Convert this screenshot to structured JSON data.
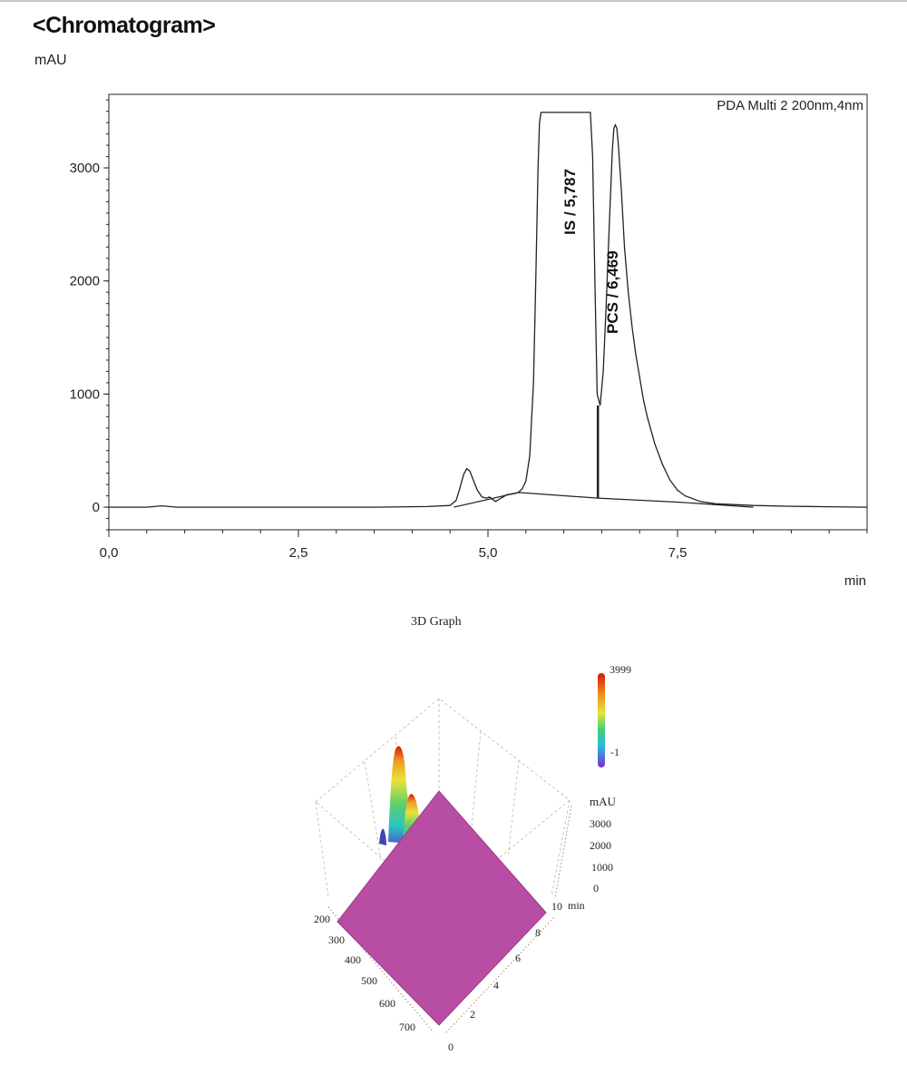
{
  "chart_data": [
    {
      "type": "line",
      "title": "<Chromatogram>",
      "ylabel": "mAU",
      "xlabel": "min",
      "detector_label": "PDA Multi 2 200nm,4nm",
      "xlim": [
        0,
        10
      ],
      "ylim": [
        -200,
        3650
      ],
      "x_ticks": [
        0,
        2.5,
        5,
        7.5
      ],
      "x_tick_labels": [
        "0,0",
        "2,5",
        "5,0",
        "7,5"
      ],
      "y_ticks": [
        0,
        1000,
        2000,
        3000
      ],
      "y_tick_labels": [
        "0",
        "1000",
        "2000",
        "3000"
      ],
      "grid": false,
      "series": [
        {
          "x": [
            0,
            0.5,
            0.7,
            0.9,
            1.5,
            2.5,
            3.5,
            4.2,
            4.5,
            4.58,
            4.63,
            4.68,
            4.72,
            4.76,
            4.8,
            4.86,
            4.92,
            4.98,
            5.02,
            5.06,
            5.1,
            5.15,
            5.2,
            5.25,
            5.3,
            5.35,
            5.4,
            5.45,
            5.5,
            5.55,
            5.6,
            5.63,
            5.66,
            5.68,
            5.7,
            6.35,
            6.38,
            6.41,
            6.44,
            6.48,
            6.52,
            6.56,
            6.6,
            6.64,
            6.66,
            6.68,
            6.7,
            6.72,
            6.76,
            6.8,
            6.85,
            6.9,
            6.95,
            7.0,
            7.05,
            7.1,
            7.2,
            7.3,
            7.4,
            7.5,
            7.6,
            7.8,
            8.0,
            8.5,
            9.0,
            9.5,
            10.0
          ],
          "y": [
            0,
            0,
            12,
            0,
            0,
            0,
            0,
            5,
            15,
            60,
            170,
            290,
            340,
            320,
            250,
            150,
            90,
            80,
            90,
            70,
            50,
            70,
            90,
            110,
            115,
            120,
            130,
            160,
            230,
            450,
            1100,
            2000,
            3000,
            3400,
            3490,
            3490,
            3100,
            2000,
            1000,
            900,
            1200,
            1800,
            2500,
            3150,
            3350,
            3380,
            3350,
            3200,
            2800,
            2300,
            1900,
            1600,
            1350,
            1150,
            950,
            800,
            560,
            380,
            240,
            150,
            100,
            50,
            30,
            15,
            8,
            4,
            0
          ]
        }
      ],
      "baselines": [
        {
          "x": [
            4.55,
            5.4,
            6.45
          ],
          "y": [
            0,
            130,
            80
          ]
        },
        {
          "x": [
            6.45,
            7.5,
            8.5
          ],
          "y": [
            80,
            45,
            0
          ]
        }
      ],
      "peaks": [
        {
          "label": "IS / 5,787",
          "rt": 5.787
        },
        {
          "label": "PCS / 6,469",
          "rt": 6.469
        }
      ],
      "peak_marker_x": 6.45
    },
    {
      "type": "surface",
      "title": "3D Graph",
      "colorbar": {
        "max_label": "3999",
        "min_label": "-1"
      },
      "z_axis": {
        "label": "mAU",
        "ticks": [
          "3000",
          "2000",
          "1000",
          "0"
        ]
      },
      "time_axis": {
        "ticks": [
          "0",
          "2",
          "4",
          "6",
          "8",
          "10"
        ],
        "unit": "min"
      },
      "wavelength_axis": {
        "ticks": [
          "200",
          "300",
          "400",
          "500",
          "600",
          "700"
        ]
      },
      "colors": {
        "surface": "#b84ea4",
        "peak_top": "#d01a0a",
        "peak_mid": "#e8e23a",
        "peak_low": "#2bc4c0"
      }
    }
  ]
}
